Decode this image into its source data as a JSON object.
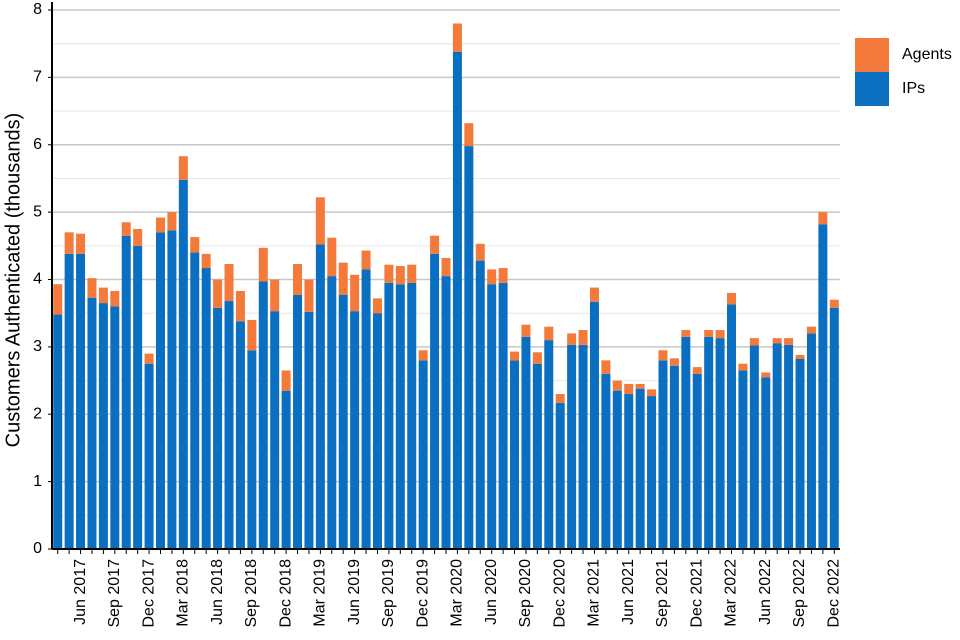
{
  "chart_data": {
    "type": "stacked_bar",
    "y_label": "Customers Authenticated (thousands)",
    "categories": [
      null,
      null,
      "Jun 2017",
      null,
      null,
      "Sep 2017",
      null,
      null,
      "Dec 2017",
      null,
      null,
      "Mar 2018",
      null,
      null,
      "Jun 2018",
      null,
      null,
      "Sep 2018",
      null,
      null,
      "Dec 2018",
      null,
      null,
      "Mar 2019",
      null,
      null,
      "Jun 2019",
      null,
      null,
      "Sep 2019",
      null,
      null,
      "Dec 2019",
      null,
      null,
      "Mar 2020",
      null,
      null,
      "Jun 2020",
      null,
      null,
      "Sep 2020",
      null,
      null,
      "Dec 2020",
      null,
      null,
      "Mar 2021",
      null,
      null,
      "Jun 2021",
      null,
      null,
      "Sep 2021",
      null,
      null,
      "Dec 2021",
      null,
      null,
      "Mar 2022",
      null,
      null,
      "Jun 2022",
      null,
      null,
      "Sep 2022",
      null,
      null,
      "Dec 2022"
    ],
    "series": [
      {
        "name": "IPs",
        "color": "#0a6fc0",
        "values": [
          3.48,
          4.38,
          4.38,
          3.73,
          3.65,
          3.6,
          4.65,
          4.5,
          2.75,
          4.7,
          4.73,
          5.48,
          4.4,
          4.17,
          3.58,
          3.68,
          3.38,
          2.95,
          3.97,
          3.53,
          2.35,
          3.77,
          3.52,
          4.52,
          4.05,
          3.77,
          3.53,
          4.15,
          3.5,
          3.95,
          3.93,
          3.95,
          2.8,
          4.38,
          4.05,
          7.38,
          5.98,
          4.28,
          3.93,
          3.95,
          2.8,
          3.15,
          2.75,
          3.1,
          2.17,
          3.03,
          3.03,
          3.67,
          2.6,
          2.35,
          2.3,
          2.38,
          2.27,
          2.8,
          2.72,
          3.15,
          2.6,
          3.15,
          3.13,
          3.63,
          2.65,
          3.02,
          2.55,
          3.05,
          3.03,
          2.82,
          3.2,
          4.82,
          3.58
        ]
      },
      {
        "name": "Agents",
        "color": "#f47a3b",
        "values": [
          0.45,
          0.32,
          0.3,
          0.29,
          0.23,
          0.23,
          0.2,
          0.25,
          0.15,
          0.22,
          0.27,
          0.35,
          0.23,
          0.21,
          0.42,
          0.55,
          0.45,
          0.45,
          0.5,
          0.47,
          0.3,
          0.46,
          0.48,
          0.7,
          0.57,
          0.48,
          0.54,
          0.28,
          0.22,
          0.27,
          0.27,
          0.27,
          0.15,
          0.27,
          0.27,
          0.42,
          0.34,
          0.25,
          0.22,
          0.22,
          0.13,
          0.18,
          0.17,
          0.2,
          0.13,
          0.17,
          0.22,
          0.21,
          0.2,
          0.15,
          0.15,
          0.07,
          0.1,
          0.15,
          0.11,
          0.1,
          0.1,
          0.1,
          0.12,
          0.17,
          0.1,
          0.11,
          0.07,
          0.08,
          0.1,
          0.06,
          0.1,
          0.18,
          0.12
        ]
      }
    ],
    "ylim": [
      0,
      8
    ],
    "yticks": [
      0,
      1,
      2,
      3,
      4,
      5,
      6,
      7,
      8
    ],
    "grid": true,
    "minor_grid": true,
    "legend": "right"
  }
}
